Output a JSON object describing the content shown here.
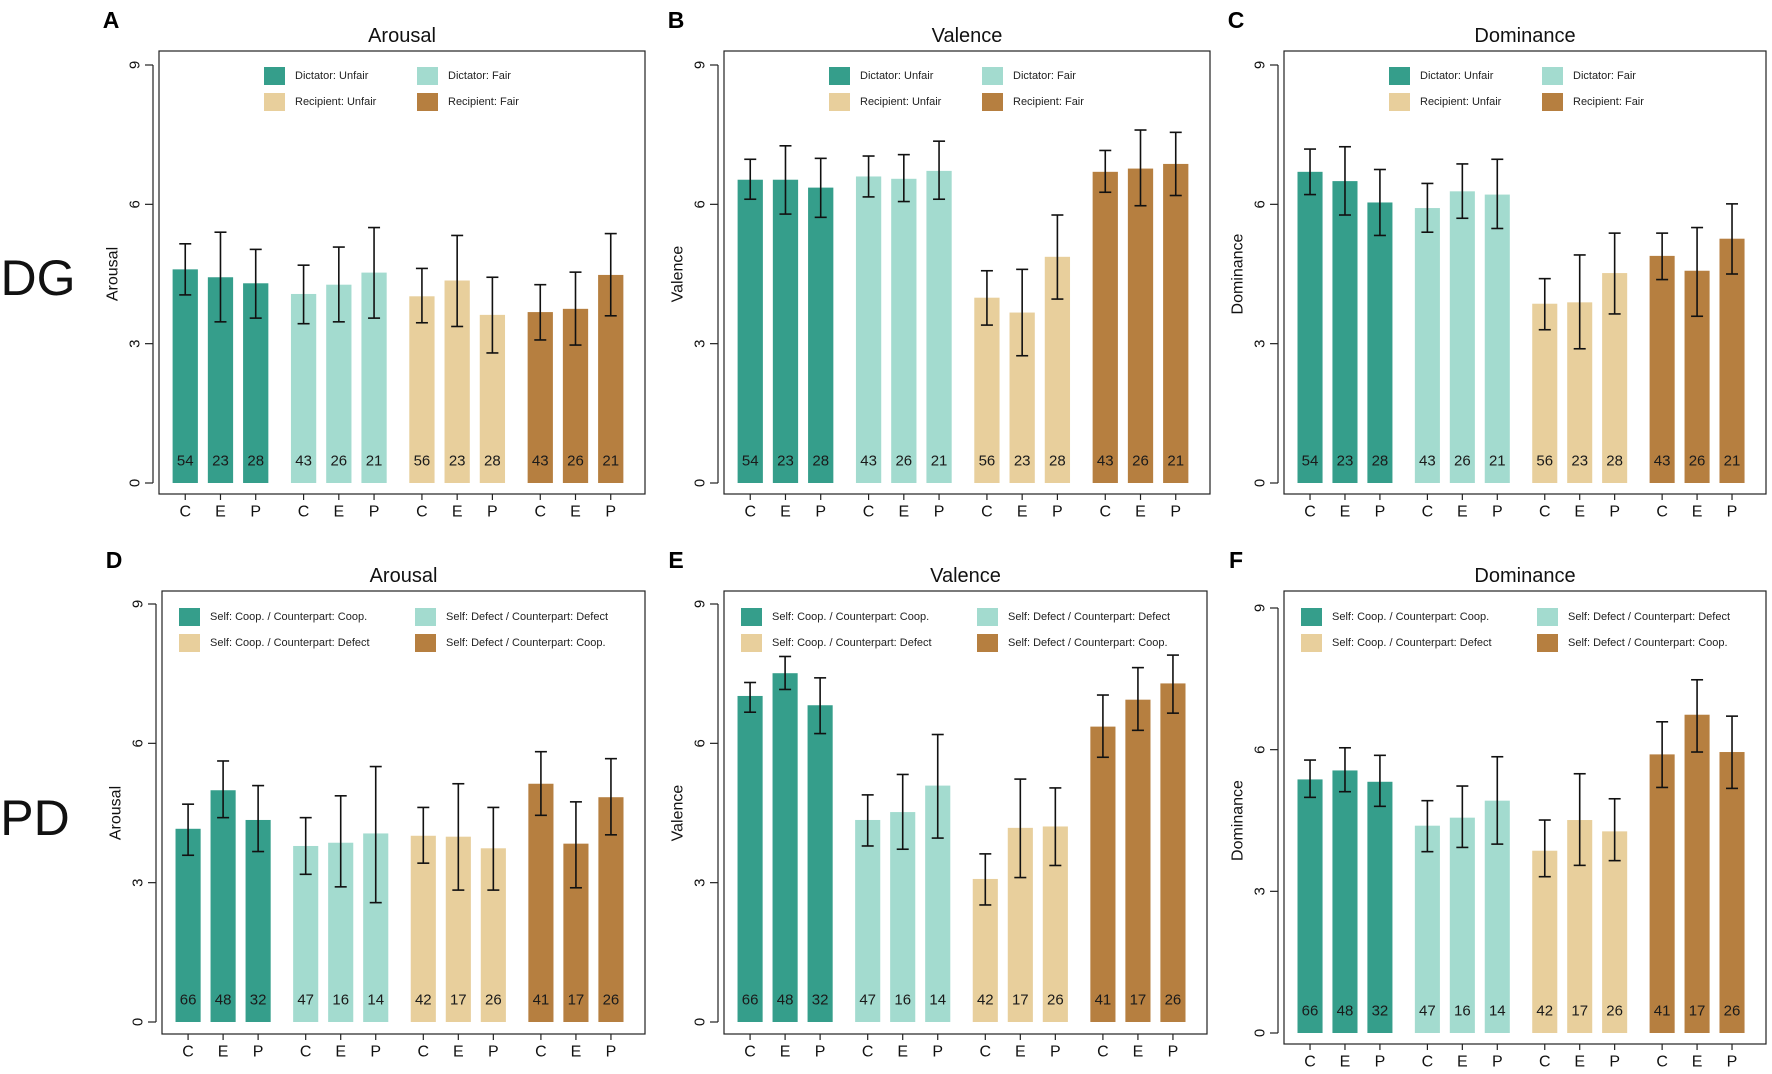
{
  "row_labels": [
    "DG",
    "PD"
  ],
  "chart_data": [
    {
      "panel": "A",
      "type": "bar",
      "title": "Arousal",
      "ylabel": "Arousal",
      "ylim": [
        0,
        9
      ],
      "yticks": [
        0,
        3,
        6,
        9
      ],
      "categories": [
        "C",
        "E",
        "P"
      ],
      "series": [
        {
          "name": "Dictator: Unfair",
          "color": "#359E8B",
          "values": [
            4.6,
            4.43,
            4.3
          ],
          "err_low": [
            4.05,
            3.47,
            3.55
          ],
          "err_high": [
            5.15,
            5.4,
            5.03
          ],
          "n": [
            54,
            23,
            28
          ]
        },
        {
          "name": "Dictator: Fair",
          "color": "#A3DBCF",
          "values": [
            4.07,
            4.27,
            4.53
          ],
          "err_low": [
            3.43,
            3.47,
            3.55
          ],
          "err_high": [
            4.69,
            5.08,
            5.5
          ],
          "n": [
            43,
            26,
            21
          ]
        },
        {
          "name": "Recipient: Unfair",
          "color": "#E8CF9C",
          "values": [
            4.02,
            4.36,
            3.62
          ],
          "err_low": [
            3.45,
            3.37,
            2.8
          ],
          "err_high": [
            4.62,
            5.33,
            4.43
          ],
          "n": [
            56,
            23,
            28
          ]
        },
        {
          "name": "Recipient: Fair",
          "color": "#B67F40",
          "values": [
            3.68,
            3.75,
            4.48
          ],
          "err_low": [
            3.08,
            2.97,
            3.6
          ],
          "err_high": [
            4.27,
            4.54,
            5.37
          ],
          "n": [
            43,
            26,
            21
          ]
        }
      ]
    },
    {
      "panel": "B",
      "type": "bar",
      "title": "Valence",
      "ylabel": "Valence",
      "ylim": [
        0,
        9
      ],
      "yticks": [
        0,
        3,
        6,
        9
      ],
      "categories": [
        "C",
        "E",
        "P"
      ],
      "series": [
        {
          "name": "Dictator: Unfair",
          "color": "#359E8B",
          "values": [
            6.53,
            6.53,
            6.36
          ],
          "err_low": [
            6.11,
            5.79,
            5.72
          ],
          "err_high": [
            6.97,
            7.26,
            6.99
          ],
          "n": [
            54,
            23,
            28
          ]
        },
        {
          "name": "Dictator: Fair",
          "color": "#A3DBCF",
          "values": [
            6.6,
            6.55,
            6.72
          ],
          "err_low": [
            6.16,
            6.06,
            6.11
          ],
          "err_high": [
            7.04,
            7.07,
            7.36
          ],
          "n": [
            43,
            26,
            21
          ]
        },
        {
          "name": "Recipient: Unfair",
          "color": "#E8CF9C",
          "values": [
            3.99,
            3.67,
            4.87
          ],
          "err_low": [
            3.4,
            2.74,
            3.96
          ],
          "err_high": [
            4.57,
            4.6,
            5.77
          ],
          "n": [
            56,
            23,
            28
          ]
        },
        {
          "name": "Recipient: Fair",
          "color": "#B67F40",
          "values": [
            6.7,
            6.77,
            6.87
          ],
          "err_low": [
            6.26,
            5.97,
            6.19
          ],
          "err_high": [
            7.16,
            7.6,
            7.55
          ],
          "n": [
            43,
            26,
            21
          ]
        }
      ]
    },
    {
      "panel": "C",
      "type": "bar",
      "title": "Dominance",
      "ylabel": "Dominance",
      "ylim": [
        0,
        9
      ],
      "yticks": [
        0,
        3,
        6,
        9
      ],
      "categories": [
        "C",
        "E",
        "P"
      ],
      "series": [
        {
          "name": "Dictator: Unfair",
          "color": "#359E8B",
          "values": [
            6.7,
            6.5,
            6.04
          ],
          "err_low": [
            6.21,
            5.77,
            5.33
          ],
          "err_high": [
            7.19,
            7.24,
            6.75
          ],
          "n": [
            54,
            23,
            28
          ]
        },
        {
          "name": "Dictator: Fair",
          "color": "#A3DBCF",
          "values": [
            5.92,
            6.28,
            6.21
          ],
          "err_low": [
            5.4,
            5.7,
            5.48
          ],
          "err_high": [
            6.45,
            6.87,
            6.97
          ],
          "n": [
            43,
            26,
            21
          ]
        },
        {
          "name": "Recipient: Unfair",
          "color": "#E8CF9C",
          "values": [
            3.86,
            3.89,
            4.52
          ],
          "err_low": [
            3.3,
            2.89,
            3.64
          ],
          "err_high": [
            4.4,
            4.91,
            5.38
          ],
          "n": [
            56,
            23,
            28
          ]
        },
        {
          "name": "Recipient: Fair",
          "color": "#B67F40",
          "values": [
            4.89,
            4.57,
            5.26
          ],
          "err_low": [
            4.38,
            3.59,
            4.5
          ],
          "err_high": [
            5.38,
            5.5,
            6.01
          ],
          "n": [
            43,
            26,
            21
          ]
        }
      ]
    },
    {
      "panel": "D",
      "type": "bar",
      "title": "Arousal",
      "ylabel": "Arousal",
      "ylim": [
        0,
        9
      ],
      "yticks": [
        0,
        3,
        6,
        9
      ],
      "categories": [
        "C",
        "E",
        "P"
      ],
      "series": [
        {
          "name": "Self: Coop. / Counterpart: Coop.",
          "color": "#359E8B",
          "values": [
            4.16,
            4.99,
            4.35
          ],
          "err_low": [
            3.59,
            4.4,
            3.67
          ],
          "err_high": [
            4.69,
            5.62,
            5.09
          ],
          "n": [
            66,
            48,
            32
          ]
        },
        {
          "name": "Self: Defect / Counterpart: Defect",
          "color": "#A3DBCF",
          "values": [
            3.79,
            3.86,
            4.06
          ],
          "err_low": [
            3.18,
            2.91,
            2.57
          ],
          "err_high": [
            4.4,
            4.87,
            5.5
          ],
          "n": [
            47,
            16,
            14
          ]
        },
        {
          "name": "Self: Coop. / Counterpart: Defect",
          "color": "#E8CF9C",
          "values": [
            4.01,
            3.99,
            3.74
          ],
          "err_low": [
            3.42,
            2.84,
            2.84
          ],
          "err_high": [
            4.62,
            5.13,
            4.62
          ],
          "n": [
            42,
            17,
            26
          ]
        },
        {
          "name": "Self: Defect / Counterpart: Coop.",
          "color": "#B67F40",
          "values": [
            5.13,
            3.84,
            4.84
          ],
          "err_low": [
            4.45,
            2.89,
            4.03
          ],
          "err_high": [
            5.82,
            4.74,
            5.67
          ],
          "n": [
            41,
            17,
            26
          ]
        }
      ]
    },
    {
      "panel": "E",
      "type": "bar",
      "title": "Valence",
      "ylabel": "Valence",
      "ylim": [
        0,
        9
      ],
      "yticks": [
        0,
        3,
        6,
        9
      ],
      "categories": [
        "C",
        "E",
        "P"
      ],
      "series": [
        {
          "name": "Self: Coop. / Counterpart: Coop.",
          "color": "#359E8B",
          "values": [
            7.02,
            7.51,
            6.82
          ],
          "err_low": [
            6.67,
            7.16,
            6.21
          ],
          "err_high": [
            7.31,
            7.87,
            7.41
          ],
          "n": [
            66,
            48,
            32
          ]
        },
        {
          "name": "Self: Defect / Counterpart: Defect",
          "color": "#A3DBCF",
          "values": [
            4.35,
            4.52,
            5.09
          ],
          "err_low": [
            3.79,
            3.72,
            3.96
          ],
          "err_high": [
            4.89,
            5.33,
            6.19
          ],
          "n": [
            47,
            16,
            14
          ]
        },
        {
          "name": "Self: Coop. / Counterpart: Defect",
          "color": "#E8CF9C",
          "values": [
            3.08,
            4.18,
            4.21
          ],
          "err_low": [
            2.52,
            3.11,
            3.37
          ],
          "err_high": [
            3.62,
            5.23,
            5.04
          ],
          "n": [
            42,
            17,
            26
          ]
        },
        {
          "name": "Self: Defect / Counterpart: Coop.",
          "color": "#B67F40",
          "values": [
            6.36,
            6.94,
            7.29
          ],
          "err_low": [
            5.7,
            6.28,
            6.65
          ],
          "err_high": [
            7.04,
            7.63,
            7.9
          ],
          "n": [
            41,
            17,
            26
          ]
        }
      ]
    },
    {
      "panel": "F",
      "type": "bar",
      "title": "Dominance",
      "ylabel": "Dominance",
      "ylim": [
        0,
        9
      ],
      "yticks": [
        0,
        3,
        6,
        9
      ],
      "categories": [
        "C",
        "E",
        "P"
      ],
      "series": [
        {
          "name": "Self: Coop. / Counterpart: Coop.",
          "color": "#359E8B",
          "values": [
            5.37,
            5.56,
            5.32
          ],
          "err_low": [
            4.99,
            5.11,
            4.8
          ],
          "err_high": [
            5.78,
            6.04,
            5.88
          ],
          "n": [
            66,
            48,
            32
          ]
        },
        {
          "name": "Self: Defect / Counterpart: Defect",
          "color": "#A3DBCF",
          "values": [
            4.39,
            4.56,
            4.92
          ],
          "err_low": [
            3.84,
            3.93,
            4.0
          ],
          "err_high": [
            4.92,
            5.23,
            5.85
          ],
          "n": [
            47,
            16,
            14
          ]
        },
        {
          "name": "Self: Coop. / Counterpart: Defect",
          "color": "#E8CF9C",
          "values": [
            3.86,
            4.51,
            4.27
          ],
          "err_low": [
            3.31,
            3.55,
            3.65
          ],
          "err_high": [
            4.51,
            5.49,
            4.96
          ],
          "n": [
            42,
            17,
            26
          ]
        },
        {
          "name": "Self: Defect / Counterpart: Coop.",
          "color": "#B67F40",
          "values": [
            5.9,
            6.74,
            5.95
          ],
          "err_low": [
            5.2,
            5.95,
            5.18
          ],
          "err_high": [
            6.59,
            7.48,
            6.71
          ],
          "n": [
            41,
            17,
            26
          ]
        }
      ]
    }
  ]
}
